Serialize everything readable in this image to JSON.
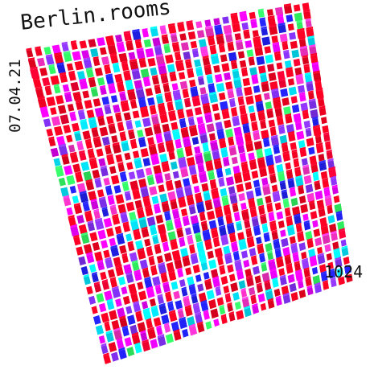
{
  "title": "Berlin.rooms",
  "date": "07.04.21",
  "count": "1024",
  "palette": [
    "#ff0022",
    "#ff0033",
    "#ee00ff",
    "#8833ff",
    "#2222ff",
    "#00e8ff",
    "#33ff66",
    "#ff33cc"
  ],
  "grid": {
    "cols": 32,
    "rows": 32
  }
}
